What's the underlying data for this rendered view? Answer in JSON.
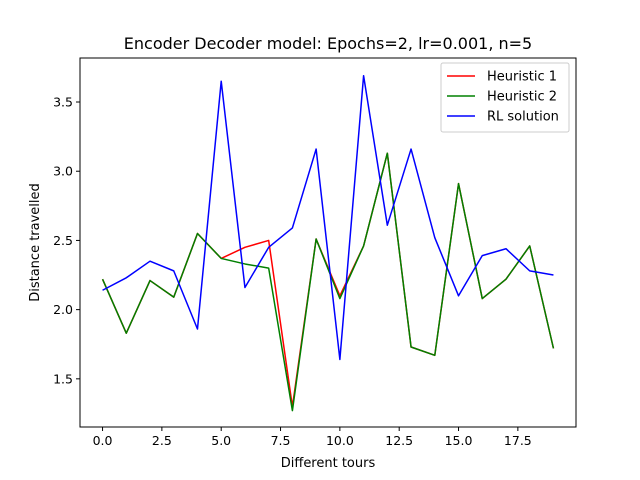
{
  "chart_data": {
    "type": "line",
    "title": "Encoder Decoder model: Epochs=2, lr=0.001, n=5",
    "xlabel": "Different tours",
    "ylabel": "Distance travelled",
    "xlim": [
      -0.95,
      19.95
    ],
    "ylim": [
      1.152,
      3.818
    ],
    "xticks": [
      0.0,
      2.5,
      5.0,
      7.5,
      10.0,
      12.5,
      15.0,
      17.5
    ],
    "xtick_labels": [
      "0.0",
      "2.5",
      "5.0",
      "7.5",
      "10.0",
      "12.5",
      "15.0",
      "17.5"
    ],
    "yticks": [
      1.5,
      2.0,
      2.5,
      3.0,
      3.5
    ],
    "ytick_labels": [
      "1.5",
      "2.0",
      "2.5",
      "3.0",
      "3.5"
    ],
    "grid": false,
    "legend": "top-right",
    "x": [
      0,
      1,
      2,
      3,
      4,
      5,
      6,
      7,
      8,
      9,
      10,
      11,
      12,
      13,
      14,
      15,
      16,
      17,
      18,
      19
    ],
    "series": [
      {
        "name": "Heuristic 1",
        "color": "#ff0000",
        "values": [
          2.22,
          1.83,
          2.21,
          2.09,
          2.55,
          2.37,
          2.45,
          2.5,
          1.3,
          2.51,
          2.1,
          2.46,
          3.13,
          1.73,
          1.67,
          2.91,
          2.08,
          2.22,
          2.46,
          1.72
        ]
      },
      {
        "name": "Heuristic 2",
        "color": "#008000",
        "values": [
          2.22,
          1.83,
          2.21,
          2.09,
          2.55,
          2.37,
          2.33,
          2.3,
          1.27,
          2.51,
          2.08,
          2.46,
          3.13,
          1.73,
          1.67,
          2.91,
          2.08,
          2.22,
          2.46,
          1.72
        ]
      },
      {
        "name": "RL solution",
        "color": "#0000ff",
        "values": [
          2.14,
          2.23,
          2.35,
          2.28,
          1.86,
          3.65,
          2.16,
          2.45,
          2.59,
          3.16,
          1.64,
          3.69,
          2.61,
          3.16,
          2.52,
          2.1,
          2.39,
          2.44,
          2.28,
          2.25
        ]
      }
    ]
  }
}
